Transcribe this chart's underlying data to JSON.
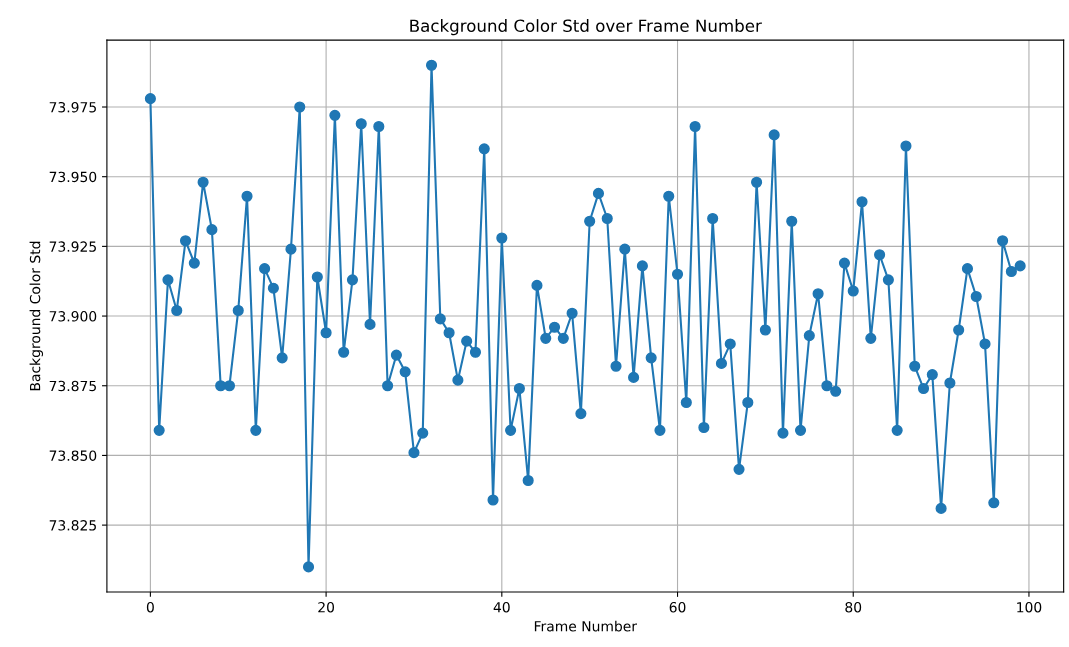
{
  "chart_data": {
    "type": "line",
    "title": "Background Color Std over Frame Number",
    "xlabel": "Frame Number",
    "ylabel": "Background Color Std",
    "x": [
      0,
      1,
      2,
      3,
      4,
      5,
      6,
      7,
      8,
      9,
      10,
      11,
      12,
      13,
      14,
      15,
      16,
      17,
      18,
      19,
      20,
      21,
      22,
      23,
      24,
      25,
      26,
      27,
      28,
      29,
      30,
      31,
      32,
      33,
      34,
      35,
      36,
      37,
      38,
      39,
      40,
      41,
      42,
      43,
      44,
      45,
      46,
      47,
      48,
      49,
      50,
      51,
      52,
      53,
      54,
      55,
      56,
      57,
      58,
      59,
      60,
      61,
      62,
      63,
      64,
      65,
      66,
      67,
      68,
      69,
      70,
      71,
      72,
      73,
      74,
      75,
      76,
      77,
      78,
      79,
      80,
      81,
      82,
      83,
      84,
      85,
      86,
      87,
      88,
      89,
      90,
      91,
      92,
      93,
      94,
      95,
      96,
      97,
      98,
      99
    ],
    "series": [
      {
        "color": "#1f77b4",
        "values": [
          73.978,
          73.859,
          73.913,
          73.902,
          73.927,
          73.919,
          73.948,
          73.931,
          73.875,
          73.875,
          73.902,
          73.943,
          73.859,
          73.917,
          73.91,
          73.885,
          73.924,
          73.975,
          73.81,
          73.914,
          73.894,
          73.972,
          73.887,
          73.913,
          73.969,
          73.897,
          73.968,
          73.875,
          73.886,
          73.88,
          73.851,
          73.858,
          73.99,
          73.899,
          73.894,
          73.877,
          73.891,
          73.887,
          73.96,
          73.834,
          73.928,
          73.859,
          73.874,
          73.841,
          73.911,
          73.892,
          73.896,
          73.892,
          73.901,
          73.865,
          73.934,
          73.944,
          73.935,
          73.882,
          73.924,
          73.878,
          73.918,
          73.885,
          73.859,
          73.943,
          73.915,
          73.869,
          73.968,
          73.86,
          73.935,
          73.883,
          73.89,
          73.845,
          73.869,
          73.948,
          73.895,
          73.965,
          73.858,
          73.934,
          73.859,
          73.893,
          73.908,
          73.875,
          73.873,
          73.919,
          73.909,
          73.941,
          73.892,
          73.922,
          73.913,
          73.859,
          73.961,
          73.882,
          73.874,
          73.879,
          73.831,
          73.876,
          73.895,
          73.917,
          73.907,
          73.89,
          73.833,
          73.927,
          73.916,
          73.918
        ]
      }
    ],
    "xlim": [
      -4.95,
      103.95
    ],
    "xticks": [
      0,
      20,
      40,
      60,
      80,
      100
    ],
    "ylim": [
      73.801,
      73.999
    ],
    "yticks": [
      {
        "value": 73.825,
        "label": "73.825"
      },
      {
        "value": 73.85,
        "label": "73.850"
      },
      {
        "value": 73.875,
        "label": "73.875"
      },
      {
        "value": 73.9,
        "label": "73.900"
      },
      {
        "value": 73.925,
        "label": "73.925"
      },
      {
        "value": 73.95,
        "label": "73.950"
      },
      {
        "value": 73.975,
        "label": "73.975"
      }
    ],
    "grid": true,
    "marker": "circle",
    "line_style": "solid"
  }
}
